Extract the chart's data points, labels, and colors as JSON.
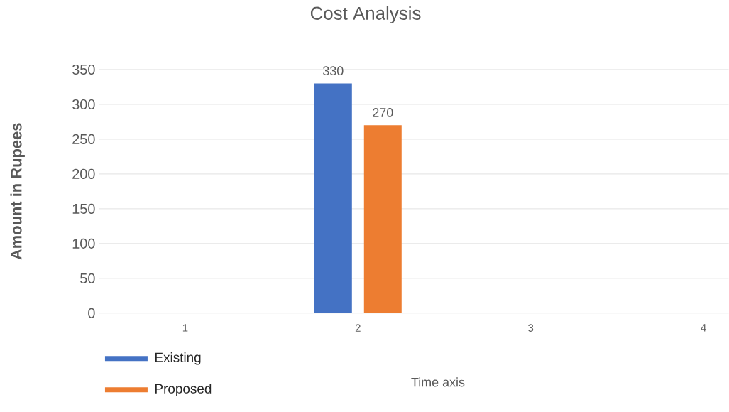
{
  "chart_data": {
    "type": "bar",
    "title": "Cost Analysis",
    "xlabel": "Time axis",
    "ylabel": "Amount in Rupees",
    "categories": [
      "1",
      "2",
      "3",
      "4"
    ],
    "series": [
      {
        "name": "Existing",
        "color": "#4472c4",
        "values": [
          null,
          330,
          null,
          null
        ]
      },
      {
        "name": "Proposed",
        "color": "#ed7d31",
        "values": [
          null,
          270,
          null,
          null
        ]
      }
    ],
    "ylim": [
      0,
      350
    ],
    "yticks": [
      0,
      50,
      100,
      150,
      200,
      250,
      300,
      350
    ],
    "grid": "y",
    "legend": "bottom",
    "data_labels": true
  }
}
